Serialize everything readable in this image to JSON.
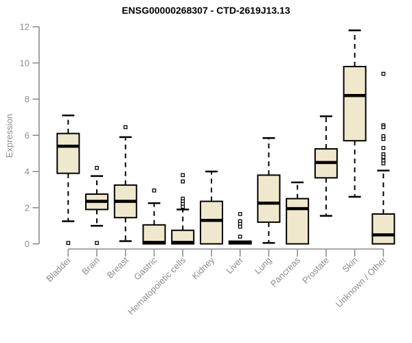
{
  "title": "ENSG00000268307 - CTD-2619J13.13",
  "chart_data": {
    "type": "boxplot",
    "title": "ENSG00000268307 - CTD-2619J13.13",
    "xlabel": "",
    "ylabel": "Expression",
    "ylim": [
      0,
      12
    ],
    "yticks": [
      0,
      2,
      4,
      6,
      8,
      10,
      12
    ],
    "grid": false,
    "legend": "none",
    "background_color": "#ffffff",
    "box_fill_color": "#efe8cd",
    "box_border_color": "#000000",
    "median_color": "#000000",
    "whisker_color": "#000000",
    "axis_color": "#8c8c8c",
    "tick_label_color": "#8c8c8c",
    "title_color": "#000000",
    "categories": [
      "Bladder",
      "Brain",
      "Breast",
      "Gastric",
      "Hematopoietic cells",
      "Kidney",
      "Liver",
      "Lung",
      "Pancreas",
      "Prostate",
      "Skin",
      "Unknown / Other"
    ],
    "series": [
      {
        "name": "Bladder",
        "low": 1.25,
        "q1": 3.9,
        "median": 5.4,
        "q3": 6.1,
        "high": 7.1,
        "outliers": [
          0.05
        ]
      },
      {
        "name": "Brain",
        "low": 1.0,
        "q1": 1.9,
        "median": 2.35,
        "q3": 2.75,
        "high": 3.75,
        "outliers": [
          4.2,
          0.05
        ]
      },
      {
        "name": "Breast",
        "low": 0.15,
        "q1": 1.45,
        "median": 2.35,
        "q3": 3.25,
        "high": 5.9,
        "outliers": [
          6.45
        ]
      },
      {
        "name": "Gastric",
        "low": 0.0,
        "q1": 0.0,
        "median": 0.08,
        "q3": 1.05,
        "high": 2.25,
        "outliers": [
          2.95
        ]
      },
      {
        "name": "Hematopoietic cells",
        "low": 0.0,
        "q1": 0.0,
        "median": 0.08,
        "q3": 0.75,
        "high": 1.9,
        "outliers": [
          3.8,
          3.45,
          2.5,
          2.35,
          2.2,
          2.05
        ]
      },
      {
        "name": "Kidney",
        "low": 0.0,
        "q1": 0.0,
        "median": 1.3,
        "q3": 2.35,
        "high": 4.0,
        "outliers": []
      },
      {
        "name": "Liver",
        "low": 0.0,
        "q1": 0.0,
        "median": 0.06,
        "q3": 0.15,
        "high": 0.15,
        "outliers": [
          1.65,
          1.25,
          1.1,
          0.95,
          0.4
        ]
      },
      {
        "name": "Lung",
        "low": 0.05,
        "q1": 1.2,
        "median": 2.25,
        "q3": 3.8,
        "high": 5.85,
        "outliers": []
      },
      {
        "name": "Pancreas",
        "low": 0.0,
        "q1": 0.0,
        "median": 1.95,
        "q3": 2.5,
        "high": 3.4,
        "outliers": []
      },
      {
        "name": "Prostate",
        "low": 1.55,
        "q1": 3.65,
        "median": 4.5,
        "q3": 5.25,
        "high": 7.05,
        "outliers": []
      },
      {
        "name": "Skin",
        "low": 2.6,
        "q1": 5.7,
        "median": 8.2,
        "q3": 9.8,
        "high": 11.8,
        "outliers": []
      },
      {
        "name": "Unknown / Other",
        "low": 0.0,
        "q1": 0.0,
        "median": 0.5,
        "q3": 1.65,
        "high": 4.05,
        "outliers": [
          9.4,
          6.55,
          6.45,
          5.95,
          5.8,
          5.3,
          4.95,
          4.8,
          4.6,
          4.45
        ]
      }
    ]
  }
}
